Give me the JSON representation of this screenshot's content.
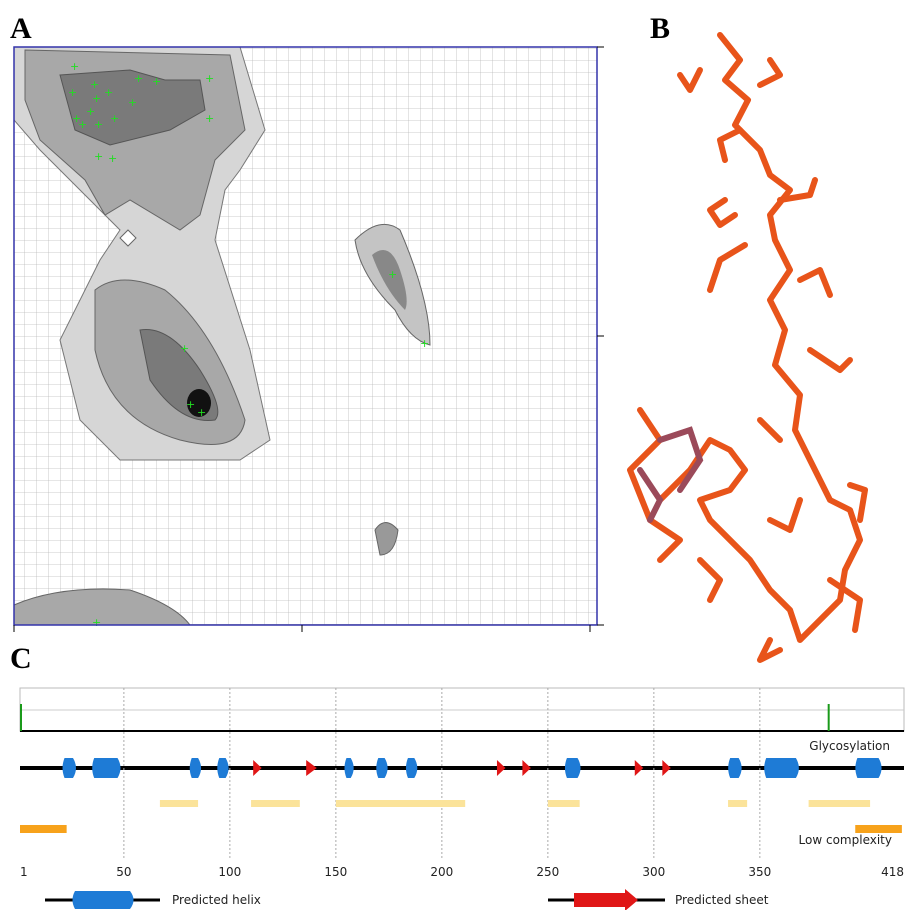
{
  "panels": {
    "a": "A",
    "b": "B",
    "c": "C"
  },
  "sequence_map": {
    "length_ticks": [
      1,
      50,
      100,
      150,
      200,
      250,
      300,
      350,
      418
    ],
    "glycosylation_label": "Glycosylation",
    "low_complexity_label": "Low complexity",
    "glycosylation_sites": [
      1,
      382
    ],
    "helices": [
      [
        22,
        26
      ],
      [
        36,
        47
      ],
      [
        82,
        85
      ],
      [
        95,
        98
      ],
      [
        155,
        157
      ],
      [
        170,
        173
      ],
      [
        184,
        187
      ],
      [
        259,
        264
      ],
      [
        336,
        340
      ],
      [
        353,
        367
      ],
      [
        396,
        406
      ]
    ],
    "sheets": [
      [
        111,
        115
      ],
      [
        136,
        141
      ],
      [
        226,
        230
      ],
      [
        238,
        242
      ],
      [
        291,
        295
      ],
      [
        304,
        308
      ]
    ],
    "disordered": [
      [
        67,
        85
      ],
      [
        110,
        133
      ],
      [
        150,
        211
      ],
      [
        250,
        265
      ],
      [
        335,
        344
      ],
      [
        373,
        402
      ]
    ],
    "low_complexity": [
      [
        1,
        23
      ],
      [
        395,
        417
      ]
    ],
    "legend": {
      "helix": "Predicted helix",
      "sheet": "Predicted sheet"
    }
  }
}
